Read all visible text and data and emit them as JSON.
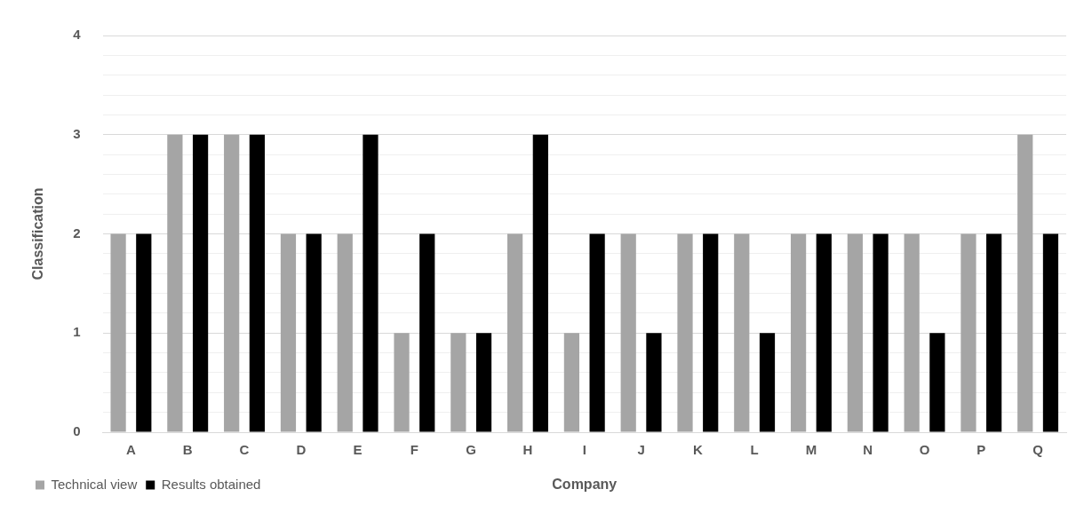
{
  "chart_data": {
    "type": "bar",
    "xlabel": "Company",
    "ylabel": "Classification",
    "categories": [
      "A",
      "B",
      "C",
      "D",
      "E",
      "F",
      "G",
      "H",
      "I",
      "J",
      "K",
      "L",
      "M",
      "N",
      "O",
      "P",
      "Q"
    ],
    "series": [
      {
        "name": "Technical view",
        "color": "#a5a5a5",
        "values": [
          2,
          3,
          3,
          2,
          2,
          1,
          1,
          2,
          1,
          2,
          2,
          2,
          2,
          2,
          2,
          2,
          3
        ]
      },
      {
        "name": "Results obtained",
        "color": "#000000",
        "values": [
          2,
          3,
          3,
          2,
          3,
          2,
          1,
          3,
          2,
          1,
          2,
          1,
          2,
          2,
          1,
          2,
          2
        ]
      }
    ],
    "ylim": [
      0,
      4
    ],
    "yticks": [
      0,
      {
        "value": 0.2,
        "label": null
      },
      {
        "value": 0.4,
        "label": null
      },
      {
        "value": 0.6,
        "label": null
      },
      {
        "value": 0.8,
        "label": null
      },
      1,
      {
        "value": 1.2,
        "label": null
      },
      {
        "value": 1.4,
        "label": null
      },
      {
        "value": 1.6,
        "label": null
      },
      {
        "value": 1.8,
        "label": null
      },
      2,
      {
        "value": 2.2,
        "label": null
      },
      {
        "value": 2.4,
        "label": null
      },
      {
        "value": 2.6,
        "label": null
      },
      {
        "value": 2.8,
        "label": null
      },
      3,
      {
        "value": 3.2,
        "label": null
      },
      {
        "value": 3.4,
        "label": null
      },
      {
        "value": 3.6,
        "label": null
      },
      {
        "value": 3.8,
        "label": null
      },
      4
    ],
    "grid": "y",
    "legend": "bottom left"
  }
}
